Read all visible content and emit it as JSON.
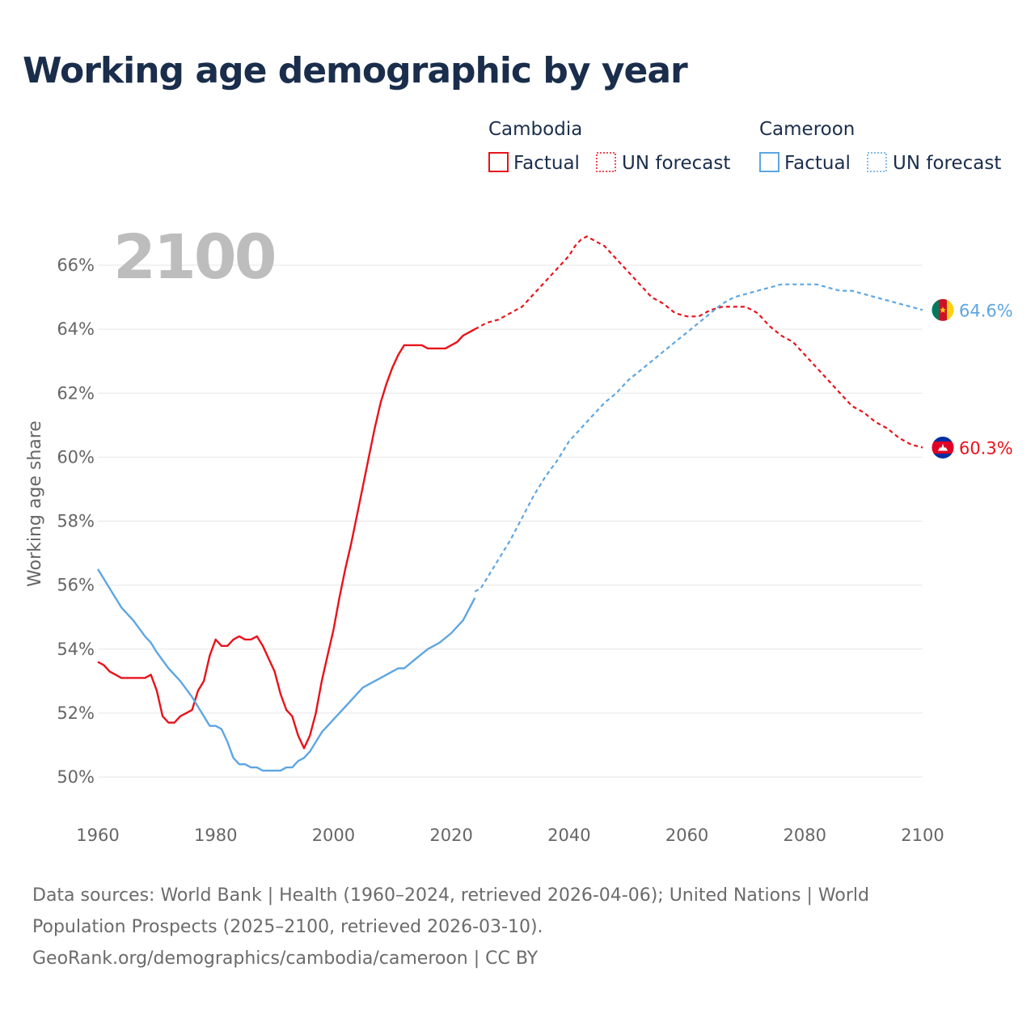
{
  "title": "Working age demographic by year",
  "footer": {
    "line1": "Data sources: World Bank | Health (1960–2024, retrieved 2026-04-06); United Nations | World",
    "line2": "Population Prospects (2025–2100, retrieved 2026-03-10).",
    "line3": "GeoRank.org/demographics/cambodia/cameroon | CC BY"
  },
  "chart_data": {
    "type": "line",
    "title": "Working age demographic by year",
    "ylabel": "Working age share",
    "xlabel": "",
    "current_year": "2100",
    "xlim": [
      1960,
      2100
    ],
    "ylim": [
      49,
      67
    ],
    "x_ticks": [
      1960,
      1980,
      2000,
      2020,
      2040,
      2060,
      2080,
      2100
    ],
    "x_tick_labels": [
      "1960",
      "1980",
      "2000",
      "2020",
      "2040",
      "2060",
      "2080",
      "2100"
    ],
    "y_ticks": [
      50,
      52,
      54,
      56,
      58,
      60,
      62,
      64,
      66
    ],
    "y_tick_labels": [
      "50%",
      "52%",
      "54%",
      "56%",
      "58%",
      "60%",
      "62%",
      "64%",
      "66%"
    ],
    "grid": true,
    "legend": {
      "position": "top-right",
      "groups": [
        {
          "name": "Cambodia",
          "factual": "Factual",
          "forecast": "UN forecast",
          "color": "#e8131b"
        },
        {
          "name": "Cameroon",
          "factual": "Factual",
          "forecast": "UN forecast",
          "color": "#5ea6e2"
        }
      ]
    },
    "series": [
      {
        "name": "Cambodia",
        "color": "#e8131b",
        "end_label": "60.3%",
        "factual": {
          "x": [
            1960,
            1961,
            1962,
            1963,
            1964,
            1965,
            1966,
            1967,
            1968,
            1969,
            1970,
            1971,
            1972,
            1973,
            1974,
            1975,
            1976,
            1977,
            1978,
            1979,
            1980,
            1981,
            1982,
            1983,
            1984,
            1985,
            1986,
            1987,
            1988,
            1989,
            1990,
            1991,
            1992,
            1993,
            1994,
            1995,
            1996,
            1997,
            1998,
            1999,
            2000,
            2001,
            2002,
            2003,
            2004,
            2005,
            2006,
            2007,
            2008,
            2009,
            2010,
            2011,
            2012,
            2013,
            2014,
            2015,
            2016,
            2017,
            2018,
            2019,
            2020,
            2021,
            2022,
            2023,
            2024
          ],
          "y": [
            53.6,
            53.5,
            53.3,
            53.2,
            53.1,
            53.1,
            53.1,
            53.1,
            53.1,
            53.2,
            52.7,
            51.9,
            51.7,
            51.7,
            51.9,
            52.0,
            52.1,
            52.7,
            53.0,
            53.8,
            54.3,
            54.1,
            54.1,
            54.3,
            54.4,
            54.3,
            54.3,
            54.4,
            54.1,
            53.7,
            53.3,
            52.6,
            52.1,
            51.9,
            51.3,
            50.9,
            51.3,
            52.0,
            53.0,
            53.8,
            54.6,
            55.6,
            56.5,
            57.3,
            58.2,
            59.1,
            60.0,
            60.9,
            61.7,
            62.3,
            62.8,
            63.2,
            63.5,
            63.5,
            63.5,
            63.5,
            63.4,
            63.4,
            63.4,
            63.4,
            63.5,
            63.6,
            63.8,
            63.9,
            64.0
          ]
        },
        "forecast": {
          "x": [
            2024,
            2026,
            2028,
            2030,
            2032,
            2034,
            2036,
            2038,
            2040,
            2041,
            2042,
            2043,
            2044,
            2046,
            2048,
            2050,
            2052,
            2054,
            2056,
            2058,
            2060,
            2062,
            2064,
            2066,
            2068,
            2070,
            2072,
            2074,
            2076,
            2078,
            2080,
            2082,
            2084,
            2086,
            2088,
            2090,
            2092,
            2094,
            2096,
            2098,
            2100
          ],
          "y": [
            64.0,
            64.2,
            64.3,
            64.5,
            64.7,
            65.1,
            65.5,
            65.9,
            66.3,
            66.6,
            66.8,
            66.9,
            66.8,
            66.6,
            66.2,
            65.8,
            65.4,
            65.0,
            64.8,
            64.5,
            64.4,
            64.4,
            64.6,
            64.7,
            64.7,
            64.7,
            64.5,
            64.1,
            63.8,
            63.6,
            63.2,
            62.8,
            62.4,
            62.0,
            61.6,
            61.4,
            61.1,
            60.9,
            60.6,
            60.4,
            60.3
          ]
        }
      },
      {
        "name": "Cameroon",
        "color": "#5ea6e2",
        "end_label": "64.6%",
        "factual": {
          "x": [
            1960,
            1962,
            1964,
            1966,
            1968,
            1969,
            1970,
            1972,
            1974,
            1976,
            1978,
            1979,
            1980,
            1981,
            1982,
            1983,
            1984,
            1985,
            1986,
            1987,
            1988,
            1989,
            1990,
            1991,
            1992,
            1993,
            1994,
            1995,
            1996,
            1998,
            2000,
            2002,
            2004,
            2005,
            2006,
            2008,
            2010,
            2011,
            2012,
            2014,
            2016,
            2018,
            2020,
            2022,
            2024
          ],
          "y": [
            56.5,
            55.9,
            55.3,
            54.9,
            54.4,
            54.2,
            53.9,
            53.4,
            53.0,
            52.5,
            51.9,
            51.6,
            51.6,
            51.5,
            51.1,
            50.6,
            50.4,
            50.4,
            50.3,
            50.3,
            50.2,
            50.2,
            50.2,
            50.2,
            50.3,
            50.3,
            50.5,
            50.6,
            50.8,
            51.4,
            51.8,
            52.2,
            52.6,
            52.8,
            52.9,
            53.1,
            53.3,
            53.4,
            53.4,
            53.7,
            54.0,
            54.2,
            54.5,
            54.9,
            55.6
          ]
        },
        "forecast": {
          "x": [
            2024,
            2025,
            2026,
            2028,
            2030,
            2032,
            2034,
            2036,
            2038,
            2040,
            2042,
            2044,
            2046,
            2048,
            2050,
            2052,
            2054,
            2056,
            2058,
            2060,
            2062,
            2064,
            2066,
            2068,
            2070,
            2072,
            2074,
            2076,
            2078,
            2080,
            2082,
            2084,
            2086,
            2088,
            2090,
            2092,
            2094,
            2096,
            2098,
            2100
          ],
          "y": [
            55.8,
            55.9,
            56.2,
            56.8,
            57.4,
            58.1,
            58.8,
            59.4,
            59.9,
            60.5,
            60.9,
            61.3,
            61.7,
            62.0,
            62.4,
            62.7,
            63.0,
            63.3,
            63.6,
            63.9,
            64.2,
            64.5,
            64.8,
            65.0,
            65.1,
            65.2,
            65.3,
            65.4,
            65.4,
            65.4,
            65.4,
            65.3,
            65.2,
            65.2,
            65.1,
            65.0,
            64.9,
            64.8,
            64.7,
            64.6
          ]
        }
      }
    ]
  }
}
